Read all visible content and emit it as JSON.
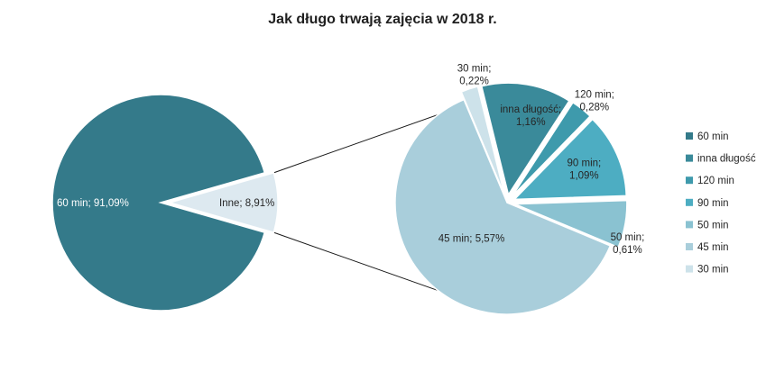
{
  "chart_data": {
    "type": "pie-of-pie",
    "title": "Jak długo trwają zajęcia w 2018 r.",
    "main_pie": {
      "slices": [
        {
          "name": "60  min",
          "value": 91.09,
          "label": "60  min; 91,09%",
          "color": "#347a8a"
        },
        {
          "name": "Inne",
          "value": 8.91,
          "label": "Inne; 8,91%",
          "color": "#dde9f0"
        }
      ]
    },
    "secondary_pie": {
      "slices": [
        {
          "name": "45 min",
          "value": 5.57,
          "label_lines": [
            "45 min; 5,57%"
          ],
          "color": "#a9cedb"
        },
        {
          "name": "30 min",
          "value": 0.22,
          "label_lines": [
            "30 min;",
            "0,22%"
          ],
          "color": "#cde2ea"
        },
        {
          "name": "inna długość",
          "value": 1.16,
          "label_lines": [
            "inna długość;",
            "1,16%"
          ],
          "color": "#3a8a9a"
        },
        {
          "name": "120 min",
          "value": 0.28,
          "label_lines": [
            "120 min;",
            "0,28%"
          ],
          "color": "#3e9aac"
        },
        {
          "name": "90 min",
          "value": 1.09,
          "label_lines": [
            "90 min;",
            "1,09%"
          ],
          "color": "#4dadc2"
        },
        {
          "name": "50 min",
          "value": 0.61,
          "label_lines": [
            "50 min;",
            "0,61%"
          ],
          "color": "#8ac2d1"
        }
      ]
    },
    "legend": {
      "position": "right",
      "items": [
        {
          "label": "60  min",
          "color": "#347a8a"
        },
        {
          "label": "inna długość",
          "color": "#3a8a9a"
        },
        {
          "label": "120 min",
          "color": "#3e9aac"
        },
        {
          "label": "90 min",
          "color": "#4dadc2"
        },
        {
          "label": "50 min",
          "color": "#8ac2d1"
        },
        {
          "label": "45 min",
          "color": "#a9cedb"
        },
        {
          "label": "30 min",
          "color": "#cde2ea"
        }
      ]
    }
  }
}
